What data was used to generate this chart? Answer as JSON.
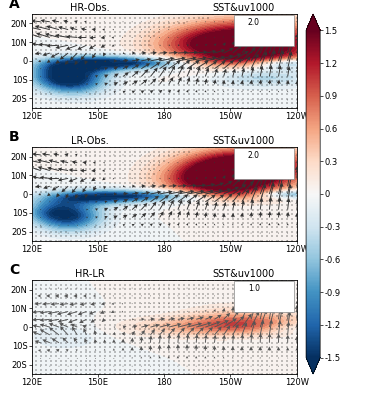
{
  "panels": [
    {
      "label": "A",
      "title_left": "HR-Obs.",
      "title_right": "SST&uv1000",
      "quiver_scale_label": "2.0",
      "quiver_ref": 2.0
    },
    {
      "label": "B",
      "title_left": "LR-Obs.",
      "title_right": "SST&uv1000",
      "quiver_scale_label": "2.0",
      "quiver_ref": 2.0
    },
    {
      "label": "C",
      "title_left": "HR-LR",
      "title_right": "SST&uv1000",
      "quiver_scale_label": "1.0",
      "quiver_ref": 1.0
    }
  ],
  "lon_range": [
    120,
    240
  ],
  "lat_range": [
    -25,
    25
  ],
  "lon_ticks": [
    120,
    150,
    180,
    210,
    240
  ],
  "lon_labels": [
    "120E",
    "150E",
    "180",
    "150W",
    "120W"
  ],
  "lat_ticks": [
    -20,
    -10,
    0,
    10,
    20
  ],
  "lat_labels": [
    "20S",
    "10S",
    "0",
    "10N",
    "20N"
  ],
  "colorbar_ticks": [
    -1.5,
    -1.2,
    -0.9,
    -0.6,
    -0.3,
    0,
    0.3,
    0.6,
    0.9,
    1.2,
    1.5
  ],
  "clim": [
    -1.5,
    1.5
  ],
  "colormap": "RdBu_r",
  "background_color": "#ffffff",
  "quiver_color_AB": "#333333",
  "quiver_color_C": "#555555",
  "panel_label_fontsize": 10,
  "axis_label_fontsize": 6,
  "title_fontsize": 7,
  "colorbar_fontsize": 6
}
